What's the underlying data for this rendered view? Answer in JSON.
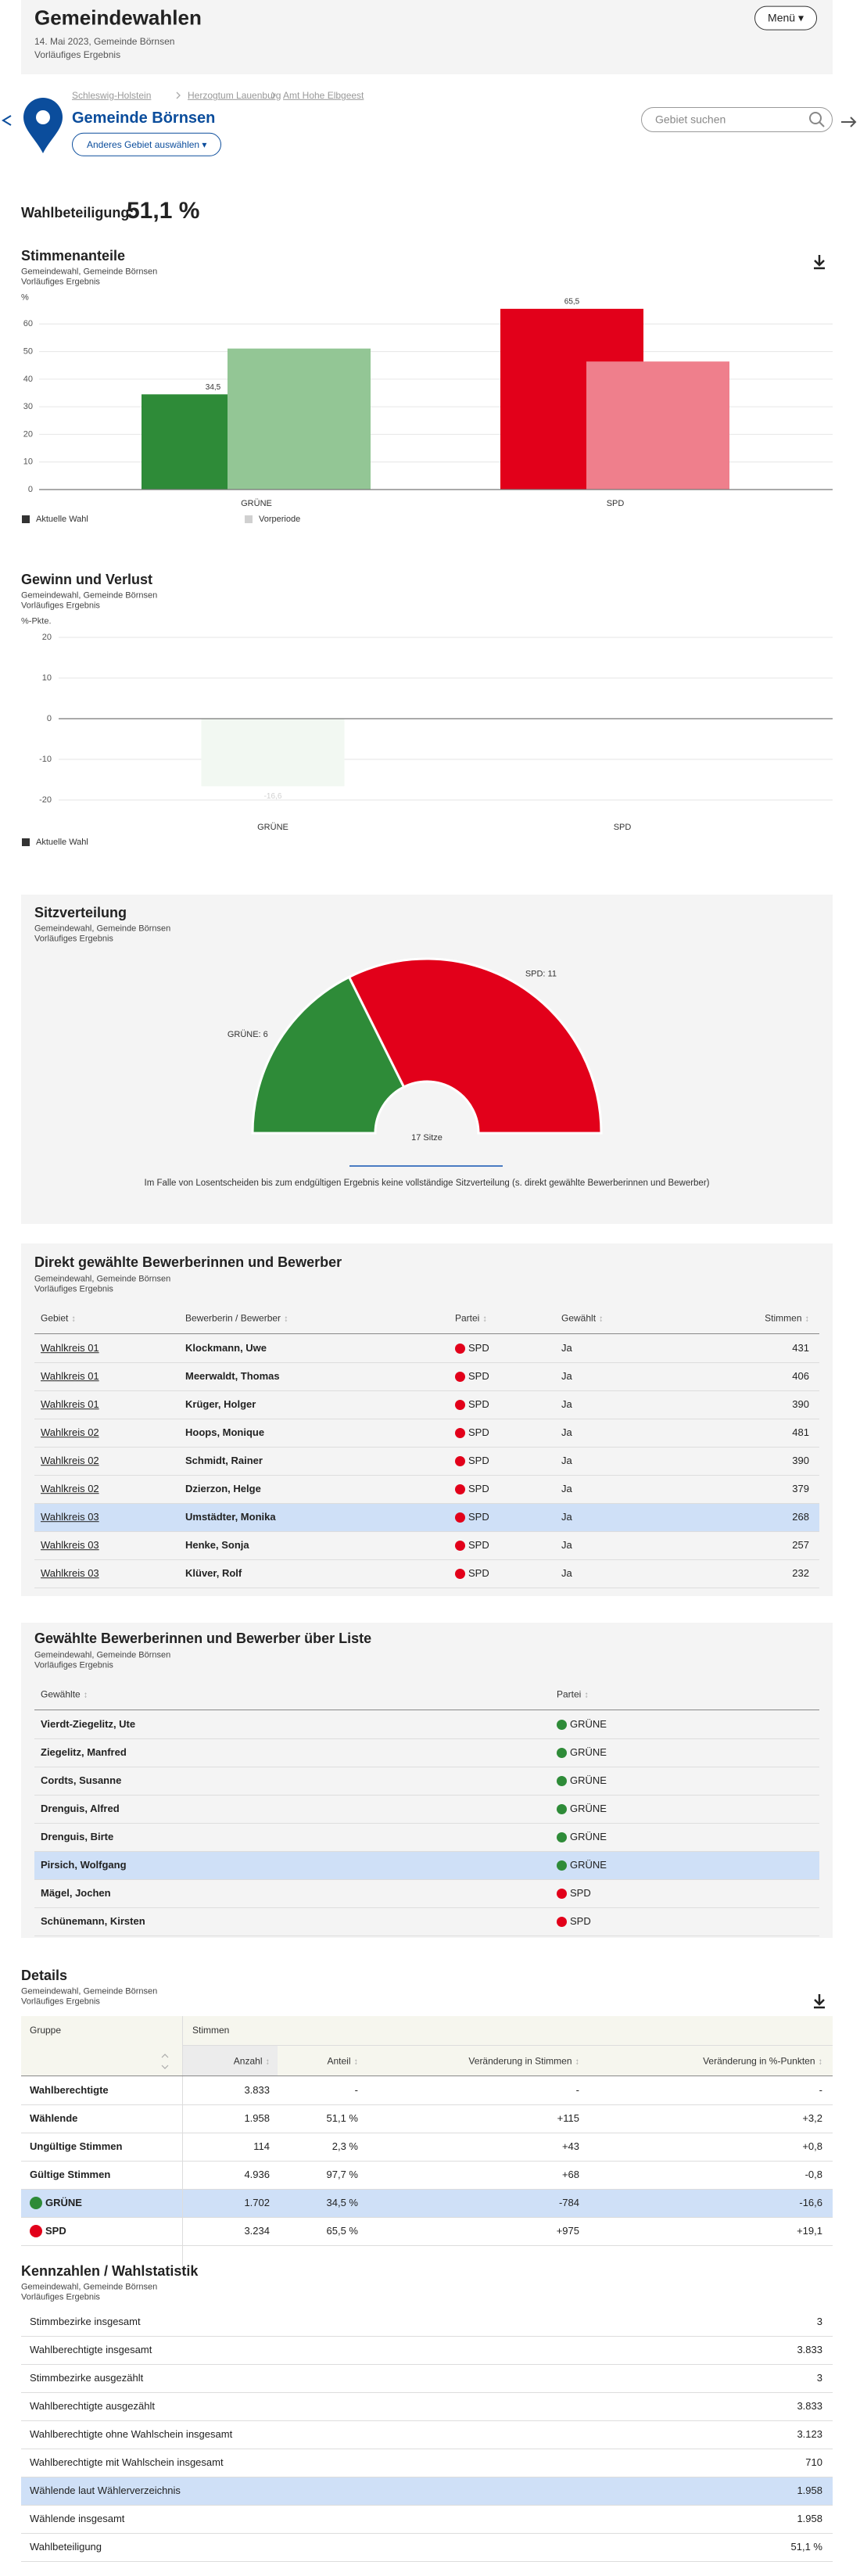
{
  "header": {
    "title": "Gemeindewahlen",
    "date": "14. Mai 2023, Gemeinde Börnsen",
    "status": "Vorläufiges Ergebnis",
    "menu": "Menü ▾"
  },
  "breadcrumb": [
    "Schleswig-Holstein",
    "Herzogtum Lauenburg",
    "Amt Hohe Elbgeest"
  ],
  "location": {
    "name": "Gemeinde Börnsen",
    "change_button": "Anderes Gebiet auswählen ▾",
    "search_placeholder": "Gebiet suchen"
  },
  "turnout": {
    "label": "Wahlbeteiligung:",
    "value": "51,1 %"
  },
  "chart_data": [
    {
      "type": "bar",
      "title": "Stimmenanteile",
      "subtitle": [
        "Gemeindewahl, Gemeinde Börnsen",
        "Vorläufiges Ergebnis"
      ],
      "y_label": "%",
      "categories": [
        "GRÜNE",
        "SPD"
      ],
      "series": [
        {
          "name": "Aktuelle Wahl",
          "color": "#333333",
          "colors": [
            "#2e8b38",
            "#e2001a"
          ],
          "values": [
            34.5,
            65.5
          ],
          "value_labels": [
            "34,5",
            "65,5"
          ]
        },
        {
          "name": "Vorperiode",
          "color": "#d0d0d0",
          "colors": [
            "#93c695",
            "#ef7f8c"
          ],
          "values": [
            51.1,
            46.4
          ]
        }
      ],
      "ylim": [
        0,
        70
      ],
      "yticks": [
        0,
        10,
        20,
        30,
        40,
        50,
        60
      ],
      "grid": true
    },
    {
      "type": "bar",
      "title": "Gewinn und Verlust",
      "subtitle": [
        "Gemeindewahl, Gemeinde Börnsen",
        "Vorläufiges Ergebnis"
      ],
      "y_label": "%-Pkte.",
      "categories": [
        "GRÜNE",
        "SPD"
      ],
      "series": [
        {
          "name": "Aktuelle Wahl",
          "color": "#333333",
          "colors": [
            "#f2f8f2",
            "#fdf0f1"
          ],
          "values": [
            -16.6,
            null
          ],
          "value_labels": [
            "-16,6",
            null
          ]
        }
      ],
      "ylim": [
        -20,
        20
      ],
      "yticks": [
        -20,
        -10,
        0,
        10,
        20
      ],
      "grid": true
    },
    {
      "type": "pie",
      "title": "Sitzverteilung",
      "subtitle": [
        "Gemeindewahl, Gemeinde Börnsen",
        "Vorläufiges Ergebnis"
      ],
      "categories": [
        "GRÜNE",
        "SPD"
      ],
      "values": [
        6,
        11
      ],
      "value_labels": [
        "GRÜNE: 6",
        "SPD: 11"
      ],
      "colors": [
        "#2e8b38",
        "#e2001a"
      ],
      "center_label": "17 Sitze",
      "note": "Im Falle von Losentscheiden bis zum endgültigen Ergebnis keine vollständige Sitzverteilung (s. direkt gewählte Bewerberinnen und Bewerber)"
    }
  ],
  "party_colors": {
    "GRÜNE": "#2e8b38",
    "SPD": "#e2001a"
  },
  "direct": {
    "title": "Direkt gewählte Bewerberinnen und Bewerber",
    "subtitle": [
      "Gemeindewahl, Gemeinde Börnsen",
      "Vorläufiges Ergebnis"
    ],
    "columns": [
      "Gebiet",
      "Bewerberin / Bewerber",
      "Partei",
      "Gewählt",
      "Stimmen"
    ],
    "rows": [
      [
        "Wahlkreis 01",
        "Klockmann, Uwe",
        "SPD",
        "Ja",
        431
      ],
      [
        "Wahlkreis 01",
        "Meerwaldt, Thomas",
        "SPD",
        "Ja",
        406
      ],
      [
        "Wahlkreis 01",
        "Krüger, Holger",
        "SPD",
        "Ja",
        390
      ],
      [
        "Wahlkreis 02",
        "Hoops, Monique",
        "SPD",
        "Ja",
        481
      ],
      [
        "Wahlkreis 02",
        "Schmidt, Rainer",
        "SPD",
        "Ja",
        390
      ],
      [
        "Wahlkreis 02",
        "Dzierzon, Helge",
        "SPD",
        "Ja",
        379
      ],
      [
        "Wahlkreis 03",
        "Umstädter, Monika",
        "SPD",
        "Ja",
        268
      ],
      [
        "Wahlkreis 03",
        "Henke, Sonja",
        "SPD",
        "Ja",
        257
      ],
      [
        "Wahlkreis 03",
        "Klüver, Rolf",
        "SPD",
        "Ja",
        232
      ]
    ],
    "highlight_row": 6
  },
  "list": {
    "title": "Gewählte Bewerberinnen und Bewerber über Liste",
    "subtitle": [
      "Gemeindewahl, Gemeinde Börnsen",
      "Vorläufiges Ergebnis"
    ],
    "columns": [
      "Gewählte",
      "Partei"
    ],
    "rows": [
      [
        "Vierdt-Ziegelitz, Ute",
        "GRÜNE"
      ],
      [
        "Ziegelitz, Manfred",
        "GRÜNE"
      ],
      [
        "Cordts, Susanne",
        "GRÜNE"
      ],
      [
        "Drenguis, Alfred",
        "GRÜNE"
      ],
      [
        "Drenguis, Birte",
        "GRÜNE"
      ],
      [
        "Pirsich, Wolfgang",
        "GRÜNE"
      ],
      [
        "Mägel, Jochen",
        "SPD"
      ],
      [
        "Schünemann, Kirsten",
        "SPD"
      ]
    ],
    "highlight_row": 5
  },
  "details": {
    "title": "Details",
    "subtitle": [
      "Gemeindewahl, Gemeinde Börnsen",
      "Vorläufiges Ergebnis"
    ],
    "group_header": [
      "Gruppe",
      "Stimmen"
    ],
    "columns": [
      "Anzahl",
      "Anteil",
      "Veränderung in Stimmen",
      "Veränderung in %-Punkten"
    ],
    "rows": [
      [
        "Wahlberechtigte",
        "3.833",
        "-",
        "-",
        "-"
      ],
      [
        "Wählende",
        "1.958",
        "51,1 %",
        "+115",
        "+3,2"
      ],
      [
        "Ungültige Stimmen",
        "114",
        "2,3 %",
        "+43",
        "+0,8"
      ],
      [
        "Gültige Stimmen",
        "4.936",
        "97,7 %",
        "+68",
        "-0,8"
      ],
      [
        "GRÜNE",
        "1.702",
        "34,5 %",
        "-784",
        "-16,6"
      ],
      [
        "SPD",
        "3.234",
        "65,5 %",
        "+975",
        "+19,1"
      ]
    ],
    "highlight_row": 4
  },
  "stats": {
    "title": "Kennzahlen / Wahlstatistik",
    "subtitle": [
      "Gemeindewahl, Gemeinde Börnsen",
      "Vorläufiges Ergebnis"
    ],
    "rows": [
      [
        "Stimmbezirke insgesamt",
        "3"
      ],
      [
        "Wahlberechtigte insgesamt",
        "3.833"
      ],
      [
        "Stimmbezirke ausgezählt",
        "3"
      ],
      [
        "Wahlberechtigte ausgezählt",
        "3.833"
      ],
      [
        "Wahlberechtigte ohne Wahlschein insgesamt",
        "3.123"
      ],
      [
        "Wahlberechtigte mit Wahlschein insgesamt",
        "710"
      ],
      [
        "Wählende laut Wählerverzeichnis",
        "1.958"
      ],
      [
        "Wählende insgesamt",
        "1.958"
      ],
      [
        "Wahlbeteiligung",
        "51,1 %"
      ]
    ],
    "highlight_row": 6
  }
}
